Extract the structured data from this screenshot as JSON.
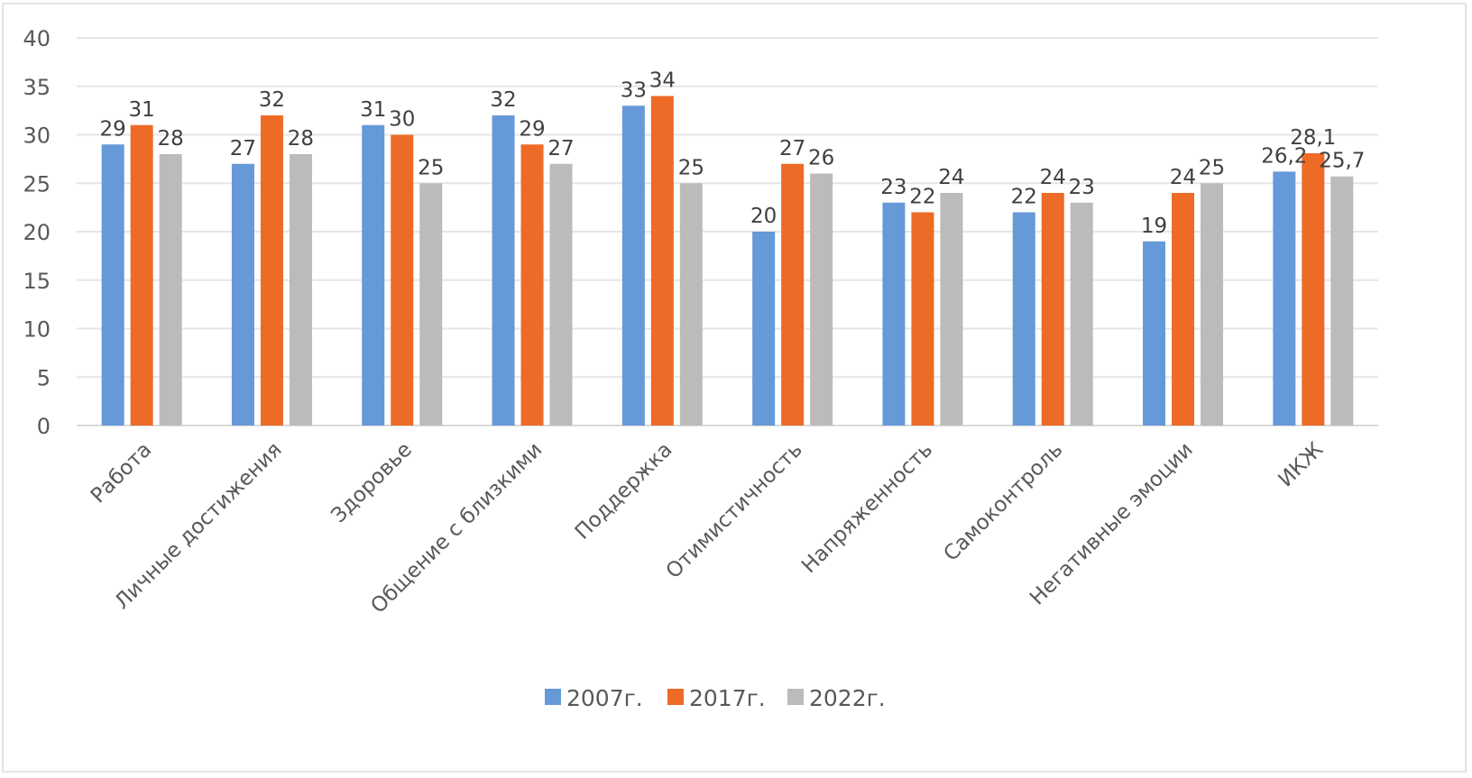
{
  "chart_data": {
    "type": "bar",
    "title": "",
    "xlabel": "",
    "ylabel": "",
    "ylim": [
      0,
      40
    ],
    "yticks": [
      "0",
      "5",
      "10",
      "15",
      "20",
      "25",
      "30",
      "35",
      "40"
    ],
    "grid": true,
    "legend_position": "bottom",
    "categories": [
      "Работа",
      "Личные достижения",
      "Здоровье",
      "Общение с близкими",
      "Поддержка",
      "Отимистичность",
      "Напряженность",
      "Самоконтроль",
      "Негативные эмоции",
      "ИКЖ"
    ],
    "series": [
      {
        "name": "2007г.",
        "color": "#6699d8",
        "values": [
          29,
          27,
          31,
          32,
          33,
          20,
          23,
          22,
          19,
          26.2
        ],
        "labels": [
          "29",
          "27",
          "31",
          "32",
          "33",
          "20",
          "23",
          "22",
          "19",
          "26,2"
        ]
      },
      {
        "name": "2017г.",
        "color": "#ed6b26",
        "values": [
          31,
          32,
          30,
          29,
          34,
          27,
          22,
          24,
          24,
          28.1
        ],
        "labels": [
          "31",
          "32",
          "30",
          "29",
          "34",
          "27",
          "22",
          "24",
          "24",
          "28,1"
        ]
      },
      {
        "name": "2022г.",
        "color": "#bcbbb9",
        "values": [
          28,
          28,
          25,
          27,
          25,
          26,
          24,
          23,
          25,
          25.7
        ],
        "labels": [
          "28",
          "28",
          "25",
          "27",
          "25",
          "26",
          "24",
          "23",
          "25",
          "25,7"
        ]
      }
    ]
  }
}
